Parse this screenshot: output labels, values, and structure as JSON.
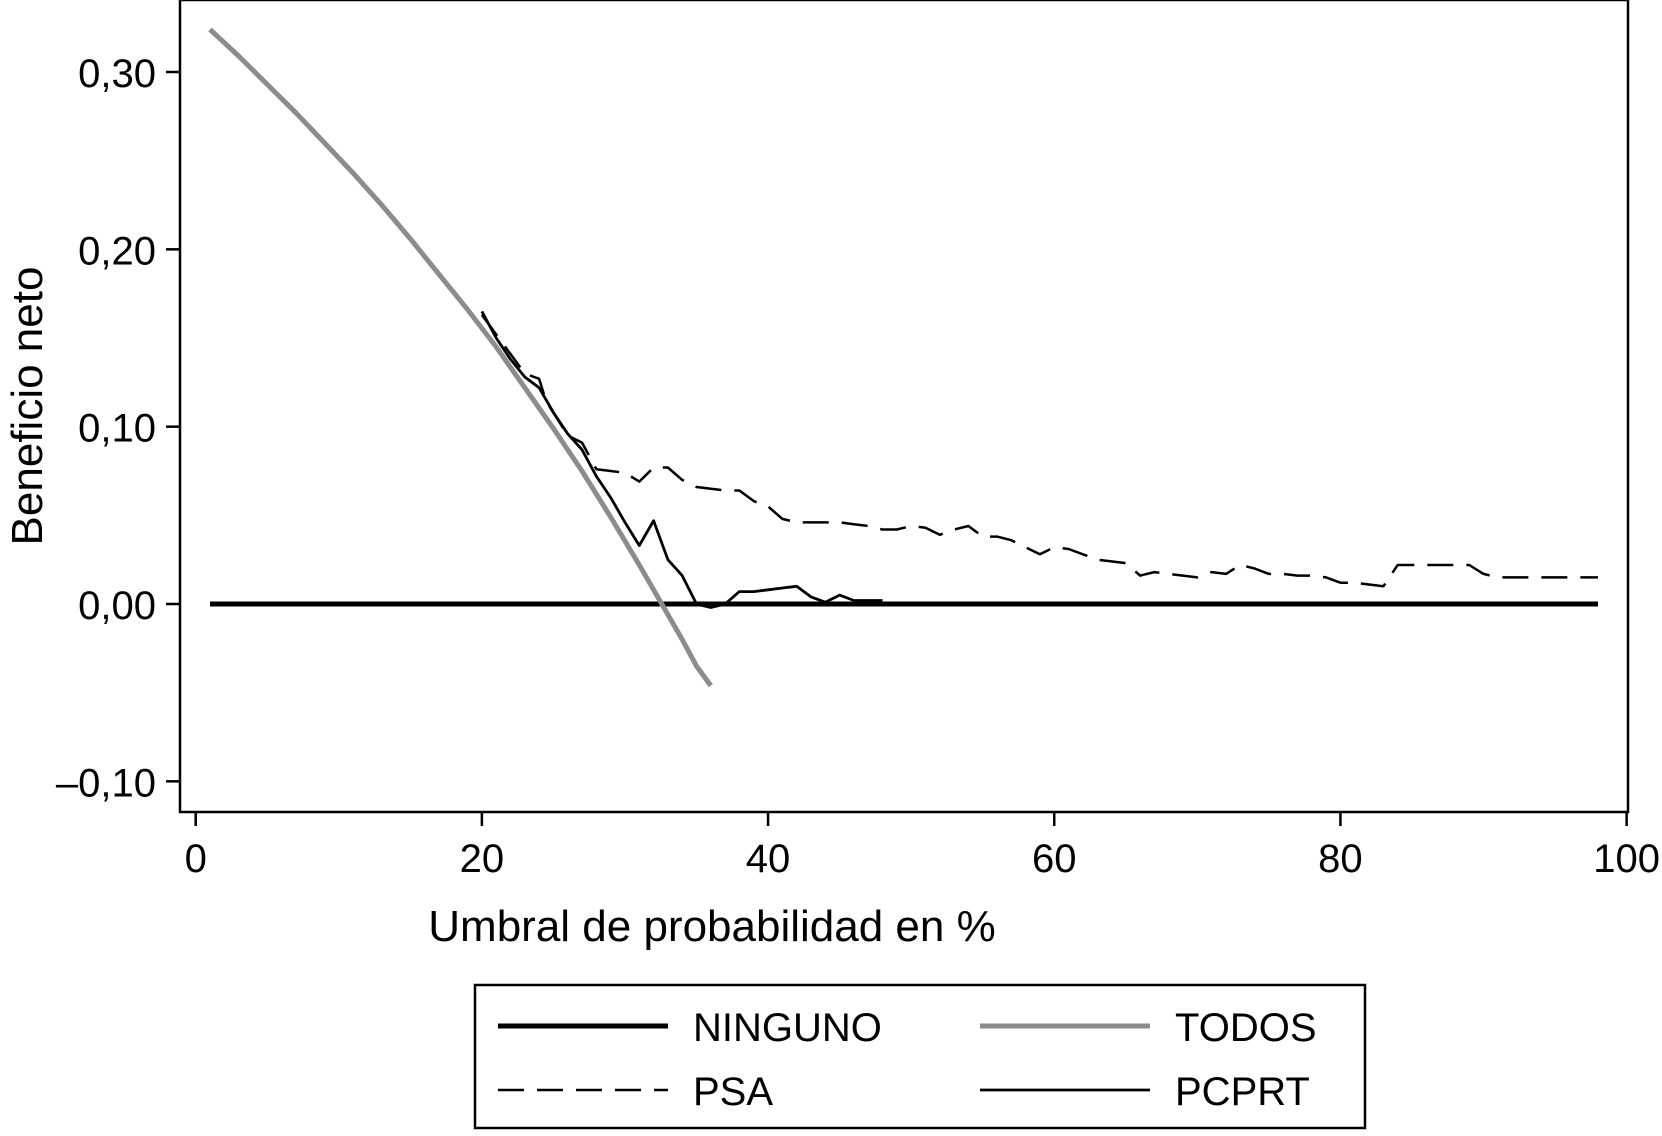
{
  "chart_data": {
    "type": "line",
    "title": "",
    "xlabel": "Umbral de probabilidad en %",
    "ylabel": "Beneficio neto",
    "xlim": [
      -2,
      101
    ],
    "ylim": [
      -0.115,
      0.34
    ],
    "x_ticks": [
      0,
      20,
      40,
      60,
      80,
      100
    ],
    "x_tick_labels": [
      "0",
      "20",
      "40",
      "60",
      "80",
      "100"
    ],
    "y_ticks": [
      -0.1,
      0.0,
      0.1,
      0.2,
      0.3
    ],
    "y_tick_labels": [
      "–0,10",
      "0,00",
      "0,10",
      "0,20",
      "0,30"
    ],
    "grid": false,
    "legend_position": "bottom",
    "series": [
      {
        "name": "NINGUNO",
        "color": "#000000",
        "style": "solid-thick",
        "points": [
          [
            1,
            0
          ],
          [
            98,
            0
          ]
        ]
      },
      {
        "name": "TODOS",
        "color": "#8c8c8c",
        "style": "solid-thick",
        "points": [
          [
            1,
            0.324
          ],
          [
            3,
            0.309
          ],
          [
            5,
            0.293
          ],
          [
            7,
            0.277
          ],
          [
            9,
            0.26
          ],
          [
            11,
            0.243
          ],
          [
            13,
            0.225
          ],
          [
            15,
            0.206
          ],
          [
            17,
            0.186
          ],
          [
            19,
            0.166
          ],
          [
            21,
            0.145
          ],
          [
            23,
            0.122
          ],
          [
            25,
            0.099
          ],
          [
            27,
            0.075
          ],
          [
            29,
            0.049
          ],
          [
            31,
            0.022
          ],
          [
            33,
            -0.006
          ],
          [
            34,
            -0.02
          ],
          [
            35,
            -0.035
          ],
          [
            36,
            -0.046
          ]
        ]
      },
      {
        "name": "PSA",
        "color": "#000000",
        "style": "dashed",
        "points": [
          [
            20,
            0.163
          ],
          [
            21,
            0.152
          ],
          [
            22,
            0.141
          ],
          [
            23,
            0.13
          ],
          [
            24,
            0.127
          ],
          [
            24.5,
            0.114
          ],
          [
            25,
            0.108
          ],
          [
            26,
            0.095
          ],
          [
            27,
            0.091
          ],
          [
            28,
            0.076
          ],
          [
            29,
            0.075
          ],
          [
            30,
            0.074
          ],
          [
            31,
            0.069
          ],
          [
            32,
            0.077
          ],
          [
            33,
            0.077
          ],
          [
            34,
            0.07
          ],
          [
            35,
            0.066
          ],
          [
            36,
            0.065
          ],
          [
            37,
            0.064
          ],
          [
            38,
            0.064
          ],
          [
            39,
            0.058
          ],
          [
            40,
            0.055
          ],
          [
            41,
            0.048
          ],
          [
            42,
            0.046
          ],
          [
            43,
            0.046
          ],
          [
            44,
            0.046
          ],
          [
            45,
            0.046
          ],
          [
            46,
            0.045
          ],
          [
            47,
            0.044
          ],
          [
            48,
            0.042
          ],
          [
            49,
            0.042
          ],
          [
            50,
            0.044
          ],
          [
            51,
            0.043
          ],
          [
            52,
            0.039
          ],
          [
            53,
            0.042
          ],
          [
            54,
            0.044
          ],
          [
            55,
            0.038
          ],
          [
            56,
            0.038
          ],
          [
            57,
            0.036
          ],
          [
            58,
            0.032
          ],
          [
            59,
            0.028
          ],
          [
            60,
            0.032
          ],
          [
            61,
            0.031
          ],
          [
            62,
            0.028
          ],
          [
            63,
            0.025
          ],
          [
            64,
            0.024
          ],
          [
            65,
            0.023
          ],
          [
            66,
            0.016
          ],
          [
            67,
            0.018
          ],
          [
            68,
            0.017
          ],
          [
            69,
            0.016
          ],
          [
            70,
            0.015
          ],
          [
            71,
            0.018
          ],
          [
            72,
            0.017
          ],
          [
            73,
            0.022
          ],
          [
            74,
            0.02
          ],
          [
            75,
            0.017
          ],
          [
            76,
            0.017
          ],
          [
            77,
            0.016
          ],
          [
            78,
            0.016
          ],
          [
            79,
            0.015
          ],
          [
            80,
            0.012
          ],
          [
            81,
            0.012
          ],
          [
            82,
            0.011
          ],
          [
            83,
            0.01
          ],
          [
            84,
            0.022
          ],
          [
            85,
            0.022
          ],
          [
            86,
            0.022
          ],
          [
            87,
            0.022
          ],
          [
            88,
            0.022
          ],
          [
            89,
            0.022
          ],
          [
            90,
            0.017
          ],
          [
            91,
            0.015
          ],
          [
            92,
            0.015
          ],
          [
            93,
            0.015
          ],
          [
            94,
            0.015
          ],
          [
            95,
            0.015
          ],
          [
            96,
            0.015
          ],
          [
            97,
            0.015
          ],
          [
            98,
            0.015
          ]
        ]
      },
      {
        "name": "PCPRT",
        "color": "#000000",
        "style": "solid-thin",
        "points": [
          [
            20,
            0.165
          ],
          [
            21,
            0.15
          ],
          [
            22,
            0.138
          ],
          [
            23,
            0.128
          ],
          [
            24,
            0.122
          ],
          [
            25,
            0.108
          ],
          [
            26,
            0.096
          ],
          [
            27,
            0.087
          ],
          [
            28,
            0.072
          ],
          [
            29,
            0.06
          ],
          [
            30,
            0.046
          ],
          [
            31,
            0.033
          ],
          [
            32,
            0.047
          ],
          [
            33,
            0.025
          ],
          [
            34,
            0.016
          ],
          [
            35,
            0.0
          ],
          [
            36,
            -0.002
          ],
          [
            37,
            0.0
          ],
          [
            38,
            0.007
          ],
          [
            39,
            0.007
          ],
          [
            40,
            0.008
          ],
          [
            41,
            0.009
          ],
          [
            42,
            0.01
          ],
          [
            43,
            0.004
          ],
          [
            44,
            0.001
          ],
          [
            45,
            0.005
          ],
          [
            46,
            0.002
          ],
          [
            47,
            0.002
          ],
          [
            48,
            0.002
          ]
        ]
      }
    ]
  }
}
